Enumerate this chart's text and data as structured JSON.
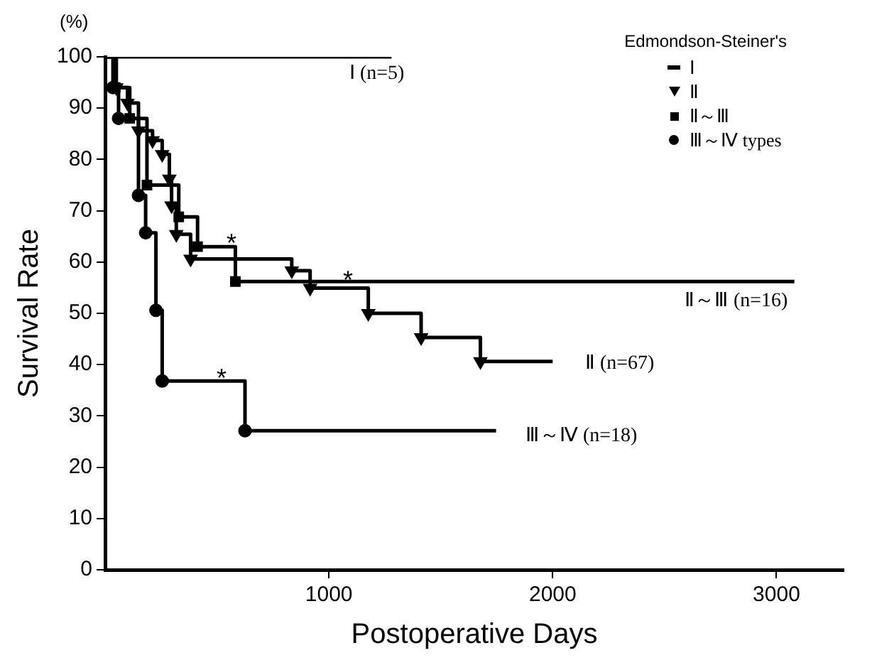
{
  "chart_data": {
    "type": "step",
    "xlabel": "Postoperative Days",
    "ylabel": "Survival Rate",
    "legend_title": "Edmondson-Steiner's",
    "legend": "top right",
    "grid": false,
    "xlim": [
      0,
      3300
    ],
    "xticks": [
      1000,
      2000,
      3000
    ],
    "ylim": [
      0,
      100
    ],
    "yticks": [
      0,
      10,
      20,
      30,
      40,
      50,
      60,
      70,
      80,
      90,
      100
    ],
    "series": [
      {
        "name": "Ⅰ",
        "color": "#000000",
        "marker": "none",
        "x": [
          0,
          1280
        ],
        "values": [
          100,
          100
        ]
      },
      {
        "name": "Ⅱ",
        "color": "#000000",
        "marker": "triangle",
        "x": [
          0,
          50,
          100,
          149,
          212,
          255,
          287,
          297,
          318,
          382,
          834,
          916,
          1176,
          1412,
          1677,
          2000
        ],
        "values": [
          100,
          94,
          91,
          85.6,
          83.7,
          81,
          76.2,
          71,
          65.4,
          60.6,
          58.3,
          54.9,
          50,
          45.3,
          40.6,
          40.6
        ]
      },
      {
        "name": "Ⅱ～Ⅲ",
        "color": "#000000",
        "marker": "square",
        "x": [
          0,
          45,
          110,
          187,
          329,
          413,
          582,
          3080
        ],
        "values": [
          100,
          94,
          88,
          75,
          68.8,
          63,
          56.2,
          56.2
        ]
      },
      {
        "name": "Ⅲ～Ⅳ types",
        "color": "#000000",
        "marker": "circle",
        "x": [
          0,
          35,
          60,
          149,
          181,
          227,
          255,
          625,
          1747
        ],
        "values": [
          100,
          94,
          88,
          73,
          65.7,
          50.6,
          36.8,
          27.1,
          27.1
        ]
      }
    ],
    "annotations": [
      "(%)",
      "Ⅰ (n=5)",
      "Ⅱ～Ⅲ (n=16)",
      "Ⅱ (n=67)",
      "Ⅲ～Ⅳ (n=18)",
      "*",
      "*",
      "*"
    ]
  }
}
